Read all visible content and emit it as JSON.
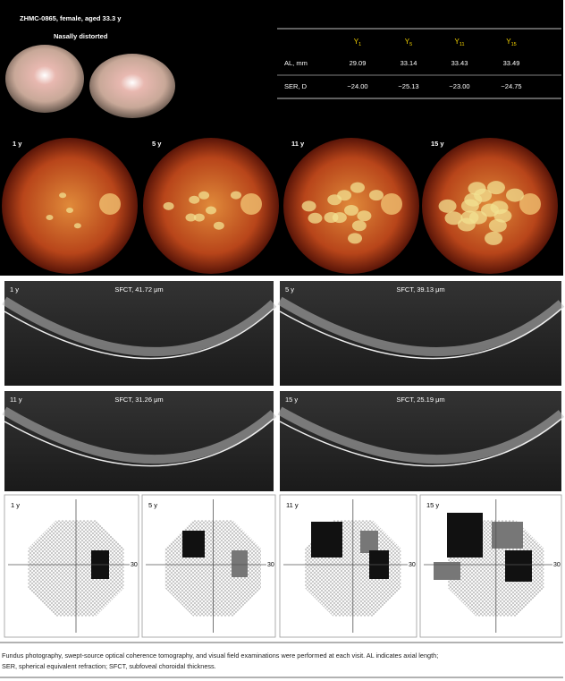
{
  "header": {
    "title": "ZHMC-0865, female, aged 33.3 y",
    "note": "Nasally distorted"
  },
  "table": {
    "columns": [
      {
        "base": "Y",
        "sub": "1"
      },
      {
        "base": "Y",
        "sub": "5"
      },
      {
        "base": "Y",
        "sub": "11"
      },
      {
        "base": "Y",
        "sub": "15"
      }
    ],
    "rows": [
      {
        "label": "AL, mm",
        "cells": [
          "29.09",
          "33.14",
          "33.43",
          "33.49"
        ]
      },
      {
        "label": "SER, D",
        "cells": [
          "−24.00",
          "−25.13",
          "−23.00",
          "−24.75"
        ]
      }
    ]
  },
  "fundus": {
    "labels": [
      "1 y",
      "5 y",
      "11 y",
      "15 y"
    ]
  },
  "oct": {
    "panels": [
      {
        "label": "1 y",
        "sfct": "SFCT, 41.72 μm"
      },
      {
        "label": "5 y",
        "sfct": "SFCT, 39.13 μm"
      },
      {
        "label": "11 y",
        "sfct": "SFCT, 31.26 μm"
      },
      {
        "label": "15 y",
        "sfct": "SFCT, 25.19 μm"
      }
    ]
  },
  "visual_field": {
    "panels": [
      {
        "label": "1 y",
        "axis": "30"
      },
      {
        "label": "5 y",
        "axis": "30"
      },
      {
        "label": "11 y",
        "axis": "30"
      },
      {
        "label": "15 y",
        "axis": "30"
      }
    ]
  },
  "caption": [
    "Fundus photography, swept-source optical coherence tomography, and visual field examinations were performed at each visit. AL indicates axial length;",
    "SER, spherical equivalent refraction; SFCT, subfoveal choroidal thickness."
  ]
}
